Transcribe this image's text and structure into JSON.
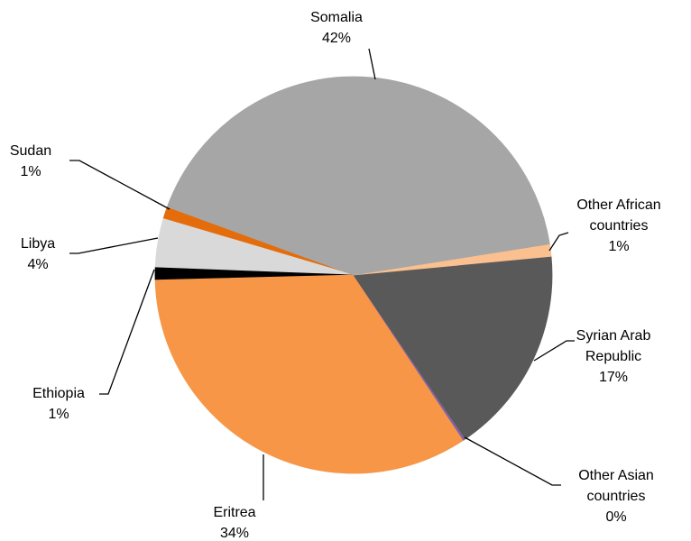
{
  "chart_data": {
    "type": "pie",
    "categories": [
      "Somalia",
      "Other African countries",
      "Syrian Arab Republic",
      "Other Asian countries",
      "Eritrea",
      "Ethiopia",
      "Libya",
      "Sudan"
    ],
    "values": [
      42,
      1,
      17,
      0.2,
      34,
      1,
      4,
      1
    ],
    "value_labels": [
      "42%",
      "1%",
      "17%",
      "0%",
      "34%",
      "1%",
      "4%",
      "1%"
    ],
    "colors": [
      "#a6a6a6",
      "#fac090",
      "#595959",
      "#8064a2",
      "#f79646",
      "#000000",
      "#d9d9d9",
      "#e46c0a"
    ]
  }
}
